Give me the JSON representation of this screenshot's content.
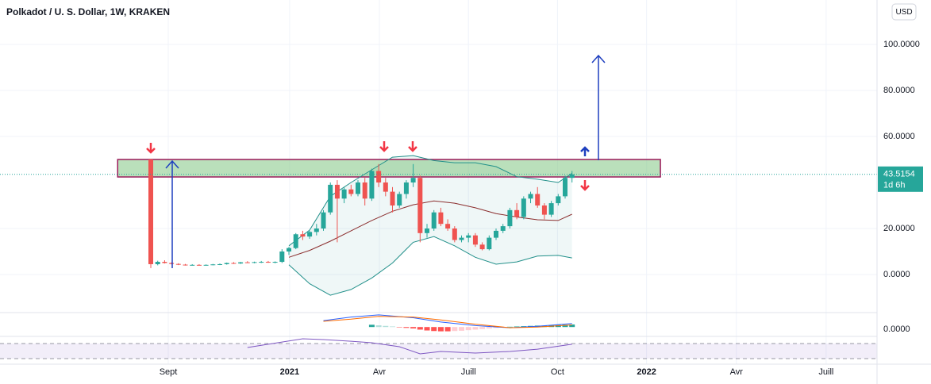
{
  "header": {
    "title": "Polkadot / U. S. Dollar, 1W, KRAKEN",
    "currency": "USD"
  },
  "chart_data": [
    {
      "type": "candlestick",
      "x": [
        0,
        1,
        2,
        3,
        4,
        5,
        6,
        7,
        8,
        9,
        10,
        11,
        12,
        13,
        14,
        15,
        16,
        17,
        18,
        19,
        20,
        21,
        22,
        23,
        24,
        25,
        26,
        27,
        28,
        29,
        30,
        31,
        32,
        33,
        34,
        35,
        36,
        37,
        38,
        39,
        40,
        41,
        42,
        43,
        44,
        45,
        46,
        47,
        48,
        49,
        50,
        51,
        52,
        53,
        54,
        55,
        56,
        57,
        58,
        59,
        60,
        61
      ],
      "open": [
        50,
        4.5,
        5.5,
        5.0,
        4.6,
        4.3,
        4.1,
        4.2,
        4.1,
        4.2,
        4.4,
        4.5,
        5.0,
        4.8,
        5.3,
        5.1,
        5.4,
        5.5,
        5.3,
        5.5,
        10,
        11.5,
        17.5,
        16.5,
        18.5,
        20,
        27,
        39,
        33,
        37,
        35,
        40,
        33,
        45,
        40,
        36,
        30,
        35,
        40,
        42,
        18,
        20,
        27,
        22,
        20,
        15,
        16,
        17,
        13,
        11,
        16,
        19,
        21,
        28,
        25,
        33,
        35,
        30,
        26,
        31,
        34,
        42
      ],
      "high": [
        50.3,
        6,
        6.2,
        5.3,
        4.9,
        4.6,
        4.5,
        4.5,
        4.4,
        4.6,
        4.8,
        5.2,
        5.4,
        5.5,
        5.8,
        5.6,
        5.9,
        5.9,
        5.7,
        11,
        12,
        18,
        19,
        19,
        22,
        28,
        40,
        41,
        38,
        39,
        41,
        42,
        46,
        48,
        42,
        38,
        36,
        41,
        48,
        43,
        22,
        28,
        29,
        24,
        21,
        17,
        18,
        18,
        14,
        17,
        20,
        22,
        29,
        31,
        34,
        36,
        38,
        31,
        32,
        35,
        43,
        45
      ],
      "low": [
        2.8,
        4,
        4.8,
        4.4,
        4.1,
        3.9,
        3.9,
        3.9,
        3.9,
        4.0,
        4.1,
        4.3,
        4.6,
        4.6,
        5.0,
        4.9,
        5.0,
        5.1,
        4.9,
        5,
        8.5,
        11,
        15,
        15.5,
        17,
        19,
        26,
        14,
        31,
        34,
        34,
        30,
        32,
        38,
        34,
        27,
        29,
        33,
        38,
        14,
        16,
        19,
        21,
        19,
        14,
        14,
        14,
        12,
        10.5,
        10.5,
        15,
        18,
        20,
        24,
        24,
        31,
        29,
        24,
        25,
        30,
        33,
        40
      ],
      "close": [
        4.5,
        5.5,
        5.0,
        4.6,
        4.3,
        4.1,
        4.2,
        4.1,
        4.2,
        4.4,
        4.5,
        5.0,
        4.8,
        5.3,
        5.1,
        5.4,
        5.5,
        5.3,
        5.5,
        10,
        11.5,
        17.5,
        16.5,
        18.5,
        20,
        27,
        39,
        33,
        37,
        35,
        40,
        33,
        45,
        40,
        36,
        30,
        35,
        40,
        42,
        18,
        20,
        27,
        22,
        20,
        15,
        16,
        17,
        13,
        11,
        16,
        19,
        21,
        28,
        25,
        33,
        35,
        30,
        26,
        31,
        34,
        42,
        43.5154
      ],
      "up_color": "#26a69a",
      "down_color": "#ef5350",
      "bands": {
        "x": [
          20,
          23,
          26,
          29,
          32,
          35,
          38,
          41,
          44,
          47,
          50,
          53,
          56,
          59,
          61
        ],
        "upper": [
          12.5,
          19.3,
          34,
          40,
          45.5,
          51,
          51.7,
          49.5,
          48.6,
          48.6,
          46.9,
          42.5,
          41.4,
          40,
          44
        ],
        "middle": [
          7.5,
          10.5,
          14.5,
          19,
          23.5,
          27.5,
          30.3,
          32,
          31,
          29,
          26.5,
          25,
          23.8,
          23.5,
          26.2
        ],
        "lower": [
          4.2,
          -4,
          -9,
          -6.5,
          -1.5,
          5,
          14,
          16.5,
          12.5,
          7.5,
          4.5,
          5.5,
          8,
          8.3,
          7.2
        ],
        "band_color": "#22908a",
        "middle_color": "#8b2e2e"
      },
      "zone": {
        "x": [
          -4.8,
          73.8
        ],
        "y": [
          42.4,
          50
        ]
      },
      "last_price": 43.5154,
      "countdown": "1d 6h",
      "xlim": [
        -21.84,
        105.17
      ],
      "xticks": [
        {
          "value": 2.53,
          "label": "Sept"
        },
        {
          "value": 20.1,
          "label": "2021"
        },
        {
          "value": 33.1,
          "label": "Avr"
        },
        {
          "value": 46,
          "label": "Juill"
        },
        {
          "value": 58.9,
          "label": "Oct"
        },
        {
          "value": 71.8,
          "label": "2022"
        },
        {
          "value": 84.8,
          "label": "Avr"
        },
        {
          "value": 97.8,
          "label": "Juill"
        }
      ],
      "ylim": [
        -16.2,
        119.3
      ],
      "yticks": [
        {
          "value": 0,
          "label": "0.0000"
        },
        {
          "value": 20,
          "label": "20.0000"
        },
        {
          "value": 60,
          "label": "60.0000"
        },
        {
          "value": 80,
          "label": "80.0000"
        },
        {
          "value": 100,
          "label": "100.0000"
        }
      ],
      "grid": true
    },
    {
      "type": "macd",
      "x": [
        25,
        29,
        33,
        38,
        42,
        47,
        52,
        56,
        61
      ],
      "macd": [
        2.25,
        3.5,
        4.25,
        3.25,
        1.75,
        0.5,
        -0.25,
        0.25,
        1.25
      ],
      "signal": [
        2,
        2.75,
        3.75,
        3.5,
        2.5,
        1,
        -0.25,
        0,
        0.75
      ],
      "macd_color": "#2962ff",
      "signal_color": "#ff6d00",
      "hist_x": [
        32,
        33,
        34,
        35,
        36,
        37,
        38,
        39,
        40,
        41,
        42,
        43,
        44,
        45,
        46,
        47,
        48,
        49,
        50,
        51,
        52,
        53,
        54,
        55,
        56,
        57,
        58,
        59,
        60,
        61
      ],
      "hist": [
        0.8,
        0.6,
        0.4,
        0.2,
        -0.1,
        -0.3,
        -0.5,
        -0.9,
        -1.2,
        -1.4,
        -1.5,
        -1.5,
        -1.4,
        -1.3,
        -1.1,
        -0.9,
        -0.7,
        -0.5,
        -0.3,
        -0.2,
        0.1,
        0.2,
        0.3,
        0.4,
        0.5,
        0.5,
        0.6,
        0.7,
        0.8,
        0.9
      ],
      "ylim": [
        -3,
        4.5
      ],
      "yticks": [
        {
          "value": 0,
          "label": "0.0000"
        }
      ]
    },
    {
      "type": "rsi",
      "x": [
        14,
        19,
        22,
        25,
        29,
        32,
        36,
        39,
        42,
        47,
        52,
        56,
        61
      ],
      "values": [
        59.5,
        74,
        82.6,
        80.5,
        76,
        72,
        61.6,
        42.6,
        49,
        44.7,
        49,
        55,
        68
      ],
      "color": "#7e57c2",
      "levels": [
        30,
        70
      ],
      "ylim": [
        17.4,
        84.7
      ]
    }
  ]
}
